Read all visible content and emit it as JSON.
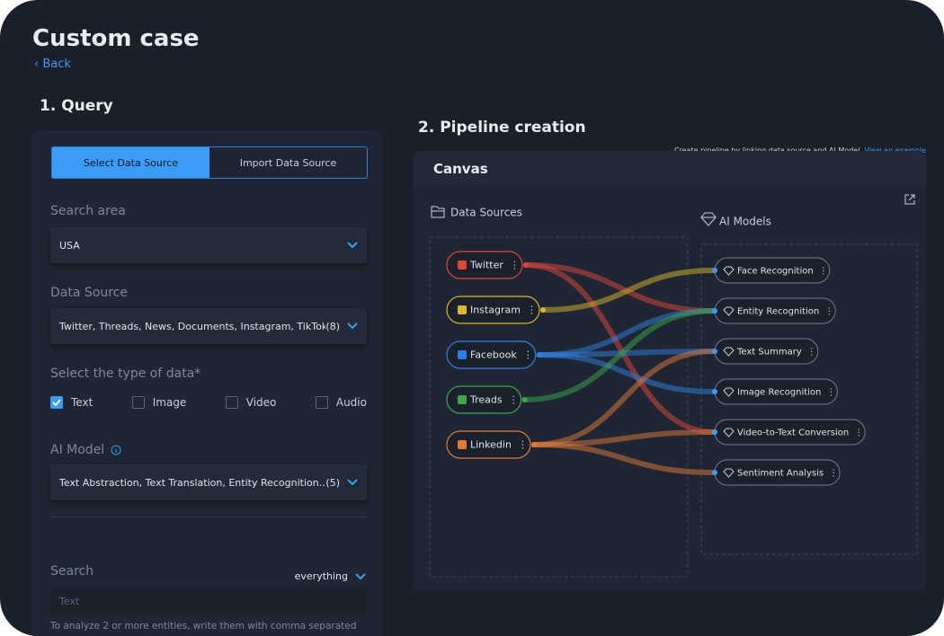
{
  "header": {
    "title": "Custom case",
    "back": "Back"
  },
  "query": {
    "title": "1. Query",
    "tabs": [
      {
        "label": "Select Data Source",
        "active": true
      },
      {
        "label": "Import Data Source",
        "active": false
      }
    ],
    "search_area": {
      "label": "Search area",
      "value": "USA"
    },
    "data_source": {
      "label": "Data Source",
      "value": "Twitter, Threads, News, Documents, Instagram, TikTok...",
      "count": "(8)"
    },
    "data_type": {
      "label": "Select the type of data*",
      "options": [
        {
          "label": "Text",
          "checked": true
        },
        {
          "label": "Image",
          "checked": false
        },
        {
          "label": "Video",
          "checked": false
        },
        {
          "label": "Audio",
          "checked": false
        }
      ]
    },
    "ai_model": {
      "label": "AI Model",
      "value": "Text Abstraction, Text Translation, Entity Recognition...",
      "count": "(5)"
    },
    "search": {
      "label": "Search",
      "scope": "everything",
      "placeholder": "Text",
      "hint": "To analyze 2 or more entities, write them with comma separated"
    }
  },
  "pipeline": {
    "title": "2. Pipeline creation",
    "instruction": "Create pipeline by linking data source and AI Model.",
    "example_link": "View an example",
    "canvas_title": "Canvas",
    "sources_title": "Data Sources",
    "models_title": "AI Models",
    "sources": [
      {
        "label": "Twitter",
        "color": "#e0453a"
      },
      {
        "label": "Instagram",
        "color": "#d9b62b"
      },
      {
        "label": "Facebook",
        "color": "#2f7fe0"
      },
      {
        "label": "Treads",
        "color": "#3aa84a"
      },
      {
        "label": "Linkedin",
        "color": "#e07a3a"
      }
    ],
    "models": [
      "Face Recognition",
      "Entity Recognition",
      "Text Summary",
      "Image Recognition",
      "Video-to-Text Conversion",
      "Sentiment Analysis"
    ],
    "links": [
      [
        0,
        1
      ],
      [
        0,
        4
      ],
      [
        1,
        0
      ],
      [
        2,
        1
      ],
      [
        2,
        2
      ],
      [
        2,
        3
      ],
      [
        3,
        1
      ],
      [
        4,
        2
      ],
      [
        4,
        4
      ],
      [
        4,
        5
      ]
    ]
  }
}
